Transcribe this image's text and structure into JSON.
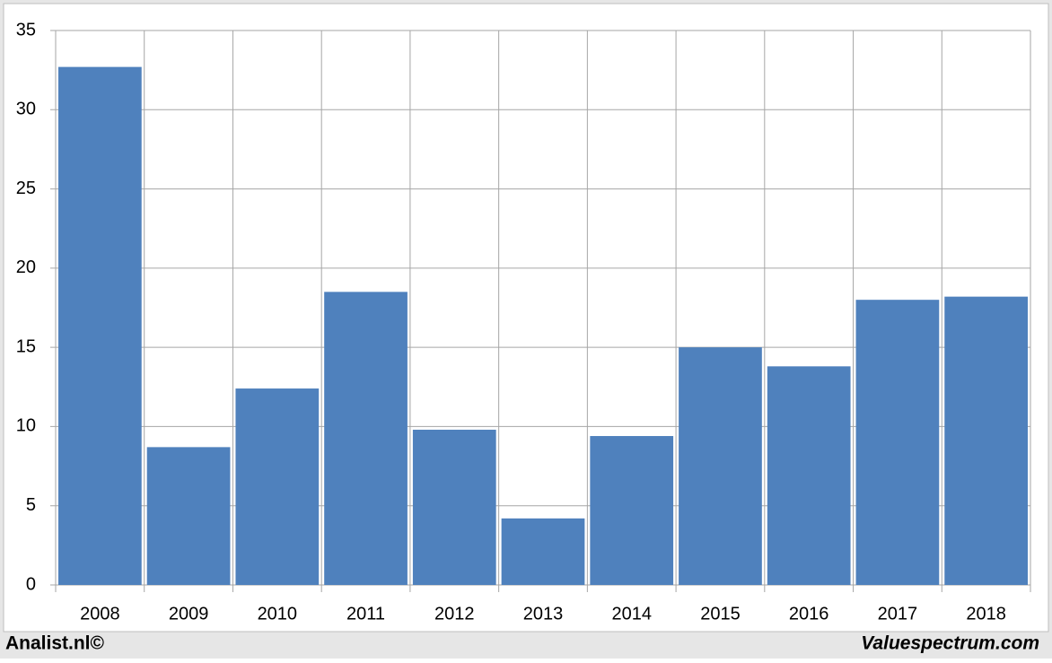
{
  "chart_data": {
    "type": "bar",
    "categories": [
      "2008",
      "2009",
      "2010",
      "2011",
      "2012",
      "2013",
      "2014",
      "2015",
      "2016",
      "2017",
      "2018"
    ],
    "values": [
      32.7,
      8.7,
      12.4,
      18.5,
      9.8,
      4.2,
      9.4,
      15.0,
      13.8,
      18.0,
      18.2
    ],
    "color": "#4f81bd",
    "ylim": [
      0,
      35
    ],
    "yticks": [
      0,
      5,
      10,
      15,
      20,
      25,
      30,
      35
    ],
    "grid": true,
    "source_left": "Analist.nl©",
    "source_right": "Valuespectrum.com"
  }
}
